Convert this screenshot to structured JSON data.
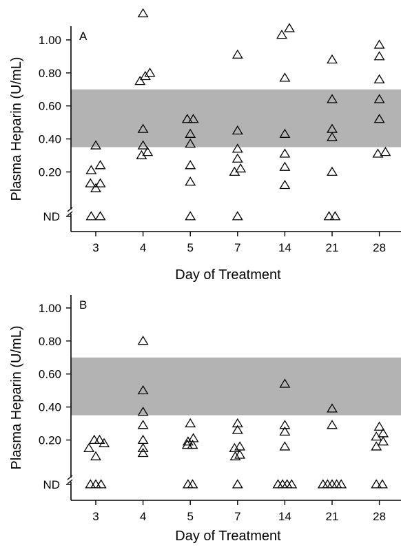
{
  "chart_data": [
    {
      "type": "scatter",
      "panel_label": "A",
      "xlabel": "Day of Treatment",
      "ylabel": "Plasma Heparin (U/mL)",
      "categories": [
        "3",
        "4",
        "5",
        "7",
        "14",
        "21",
        "28"
      ],
      "ylim": [
        0,
        1.2
      ],
      "yticks": [
        0.2,
        0.4,
        0.6,
        0.8,
        1.0
      ],
      "ytick_labels": [
        "0.20",
        "0.40",
        "0.60",
        "0.80",
        "1.00"
      ],
      "nd_label": "ND",
      "marker": "open-triangle",
      "shaded_band": {
        "y0": 0.35,
        "y1": 0.7,
        "color": "#b3b3b3"
      },
      "grid": false,
      "points": [
        {
          "x": "3",
          "y": 0.36,
          "offset": 0
        },
        {
          "x": "3",
          "y": 0.24,
          "offset": 0.3
        },
        {
          "x": "3",
          "y": 0.21,
          "offset": -0.3
        },
        {
          "x": "3",
          "y": 0.13,
          "offset": -0.35
        },
        {
          "x": "3",
          "y": 0.13,
          "offset": 0.3
        },
        {
          "x": "3",
          "y": 0.1,
          "offset": 0
        },
        {
          "x": "3",
          "y": "ND",
          "offset": -0.3
        },
        {
          "x": "3",
          "y": "ND",
          "offset": 0.3
        },
        {
          "x": "4",
          "y": 1.16,
          "offset": 0
        },
        {
          "x": "4",
          "y": 0.8,
          "offset": 0.45
        },
        {
          "x": "4",
          "y": 0.78,
          "offset": 0.15
        },
        {
          "x": "4",
          "y": 0.75,
          "offset": -0.2
        },
        {
          "x": "4",
          "y": 0.46,
          "offset": 0
        },
        {
          "x": "4",
          "y": 0.36,
          "offset": 0
        },
        {
          "x": "4",
          "y": 0.32,
          "offset": 0.3
        },
        {
          "x": "4",
          "y": 0.3,
          "offset": -0.1
        },
        {
          "x": "5",
          "y": 0.52,
          "offset": -0.2
        },
        {
          "x": "5",
          "y": 0.52,
          "offset": 0.2
        },
        {
          "x": "5",
          "y": 0.43,
          "offset": 0
        },
        {
          "x": "5",
          "y": 0.37,
          "offset": 0
        },
        {
          "x": "5",
          "y": 0.24,
          "offset": 0
        },
        {
          "x": "5",
          "y": 0.14,
          "offset": 0
        },
        {
          "x": "5",
          "y": "ND",
          "offset": 0
        },
        {
          "x": "7",
          "y": 0.91,
          "offset": 0
        },
        {
          "x": "7",
          "y": 0.45,
          "offset": 0
        },
        {
          "x": "7",
          "y": 0.34,
          "offset": 0
        },
        {
          "x": "7",
          "y": 0.28,
          "offset": 0
        },
        {
          "x": "7",
          "y": 0.22,
          "offset": 0.2
        },
        {
          "x": "7",
          "y": 0.2,
          "offset": -0.2
        },
        {
          "x": "7",
          "y": "ND",
          "offset": 0
        },
        {
          "x": "14",
          "y": 1.07,
          "offset": 0.3
        },
        {
          "x": "14",
          "y": 1.03,
          "offset": -0.2
        },
        {
          "x": "14",
          "y": 0.77,
          "offset": 0
        },
        {
          "x": "14",
          "y": 0.43,
          "offset": 0
        },
        {
          "x": "14",
          "y": 0.31,
          "offset": 0
        },
        {
          "x": "14",
          "y": 0.23,
          "offset": 0
        },
        {
          "x": "14",
          "y": 0.12,
          "offset": 0
        },
        {
          "x": "21",
          "y": 0.88,
          "offset": 0
        },
        {
          "x": "21",
          "y": 0.64,
          "offset": 0
        },
        {
          "x": "21",
          "y": 0.46,
          "offset": 0
        },
        {
          "x": "21",
          "y": 0.41,
          "offset": 0
        },
        {
          "x": "21",
          "y": 0.2,
          "offset": 0
        },
        {
          "x": "21",
          "y": "ND",
          "offset": -0.2
        },
        {
          "x": "21",
          "y": "ND",
          "offset": 0.2
        },
        {
          "x": "28",
          "y": 0.97,
          "offset": 0
        },
        {
          "x": "28",
          "y": 0.9,
          "offset": 0
        },
        {
          "x": "28",
          "y": 0.76,
          "offset": 0
        },
        {
          "x": "28",
          "y": 0.64,
          "offset": 0
        },
        {
          "x": "28",
          "y": 0.52,
          "offset": 0
        },
        {
          "x": "28",
          "y": 0.32,
          "offset": 0.4
        },
        {
          "x": "28",
          "y": 0.31,
          "offset": -0.1
        }
      ]
    },
    {
      "type": "scatter",
      "panel_label": "B",
      "xlabel": "Day of Treatment",
      "ylabel": "Plasma Heparin (U/mL)",
      "categories": [
        "3",
        "4",
        "5",
        "7",
        "14",
        "21",
        "28"
      ],
      "ylim": [
        0,
        1.2
      ],
      "yticks": [
        0.2,
        0.4,
        0.6,
        0.8,
        1.0
      ],
      "ytick_labels": [
        "0.20",
        "0.40",
        "0.60",
        "0.80",
        "1.00"
      ],
      "nd_label": "ND",
      "marker": "open-triangle",
      "shaded_band": {
        "y0": 0.35,
        "y1": 0.7,
        "color": "#b3b3b3"
      },
      "grid": false,
      "points": [
        {
          "x": "3",
          "y": 0.2,
          "offset": -0.1
        },
        {
          "x": "3",
          "y": 0.2,
          "offset": 0.25
        },
        {
          "x": "3",
          "y": 0.18,
          "offset": 0.55
        },
        {
          "x": "3",
          "y": 0.15,
          "offset": -0.45
        },
        {
          "x": "3",
          "y": 0.1,
          "offset": 0
        },
        {
          "x": "3",
          "y": "ND",
          "offset": -0.35
        },
        {
          "x": "3",
          "y": "ND",
          "offset": 0
        },
        {
          "x": "3",
          "y": "ND",
          "offset": 0.35
        },
        {
          "x": "4",
          "y": 0.8,
          "offset": 0
        },
        {
          "x": "4",
          "y": 0.5,
          "offset": 0
        },
        {
          "x": "4",
          "y": 0.37,
          "offset": 0
        },
        {
          "x": "4",
          "y": 0.29,
          "offset": 0
        },
        {
          "x": "4",
          "y": 0.2,
          "offset": 0
        },
        {
          "x": "4",
          "y": 0.15,
          "offset": 0
        },
        {
          "x": "4",
          "y": 0.12,
          "offset": 0
        },
        {
          "x": "5",
          "y": 0.3,
          "offset": 0
        },
        {
          "x": "5",
          "y": 0.21,
          "offset": 0.2
        },
        {
          "x": "5",
          "y": 0.19,
          "offset": -0.15
        },
        {
          "x": "5",
          "y": 0.17,
          "offset": 0.15
        },
        {
          "x": "5",
          "y": 0.17,
          "offset": -0.2
        },
        {
          "x": "5",
          "y": "ND",
          "offset": -0.15
        },
        {
          "x": "5",
          "y": "ND",
          "offset": 0.15
        },
        {
          "x": "7",
          "y": 0.3,
          "offset": 0
        },
        {
          "x": "7",
          "y": 0.26,
          "offset": 0
        },
        {
          "x": "7",
          "y": 0.16,
          "offset": 0.15
        },
        {
          "x": "7",
          "y": 0.15,
          "offset": -0.2
        },
        {
          "x": "7",
          "y": 0.11,
          "offset": 0.15
        },
        {
          "x": "7",
          "y": 0.1,
          "offset": -0.15
        },
        {
          "x": "7",
          "y": "ND",
          "offset": 0
        },
        {
          "x": "14",
          "y": 0.54,
          "offset": 0
        },
        {
          "x": "14",
          "y": 0.29,
          "offset": 0
        },
        {
          "x": "14",
          "y": 0.25,
          "offset": 0
        },
        {
          "x": "14",
          "y": 0.16,
          "offset": 0
        },
        {
          "x": "14",
          "y": "ND",
          "offset": -0.45
        },
        {
          "x": "14",
          "y": "ND",
          "offset": -0.15
        },
        {
          "x": "14",
          "y": "ND",
          "offset": 0.15
        },
        {
          "x": "14",
          "y": "ND",
          "offset": 0.45
        },
        {
          "x": "21",
          "y": 0.39,
          "offset": 0
        },
        {
          "x": "21",
          "y": 0.29,
          "offset": 0
        },
        {
          "x": "21",
          "y": "ND",
          "offset": -0.6
        },
        {
          "x": "21",
          "y": "ND",
          "offset": -0.3
        },
        {
          "x": "21",
          "y": "ND",
          "offset": 0
        },
        {
          "x": "21",
          "y": "ND",
          "offset": 0.3
        },
        {
          "x": "21",
          "y": "ND",
          "offset": 0.6
        },
        {
          "x": "28",
          "y": 0.28,
          "offset": 0
        },
        {
          "x": "28",
          "y": 0.24,
          "offset": 0.25
        },
        {
          "x": "28",
          "y": 0.22,
          "offset": -0.2
        },
        {
          "x": "28",
          "y": 0.19,
          "offset": 0.25
        },
        {
          "x": "28",
          "y": 0.16,
          "offset": -0.2
        },
        {
          "x": "28",
          "y": "ND",
          "offset": -0.2
        },
        {
          "x": "28",
          "y": "ND",
          "offset": 0.2
        }
      ]
    }
  ]
}
